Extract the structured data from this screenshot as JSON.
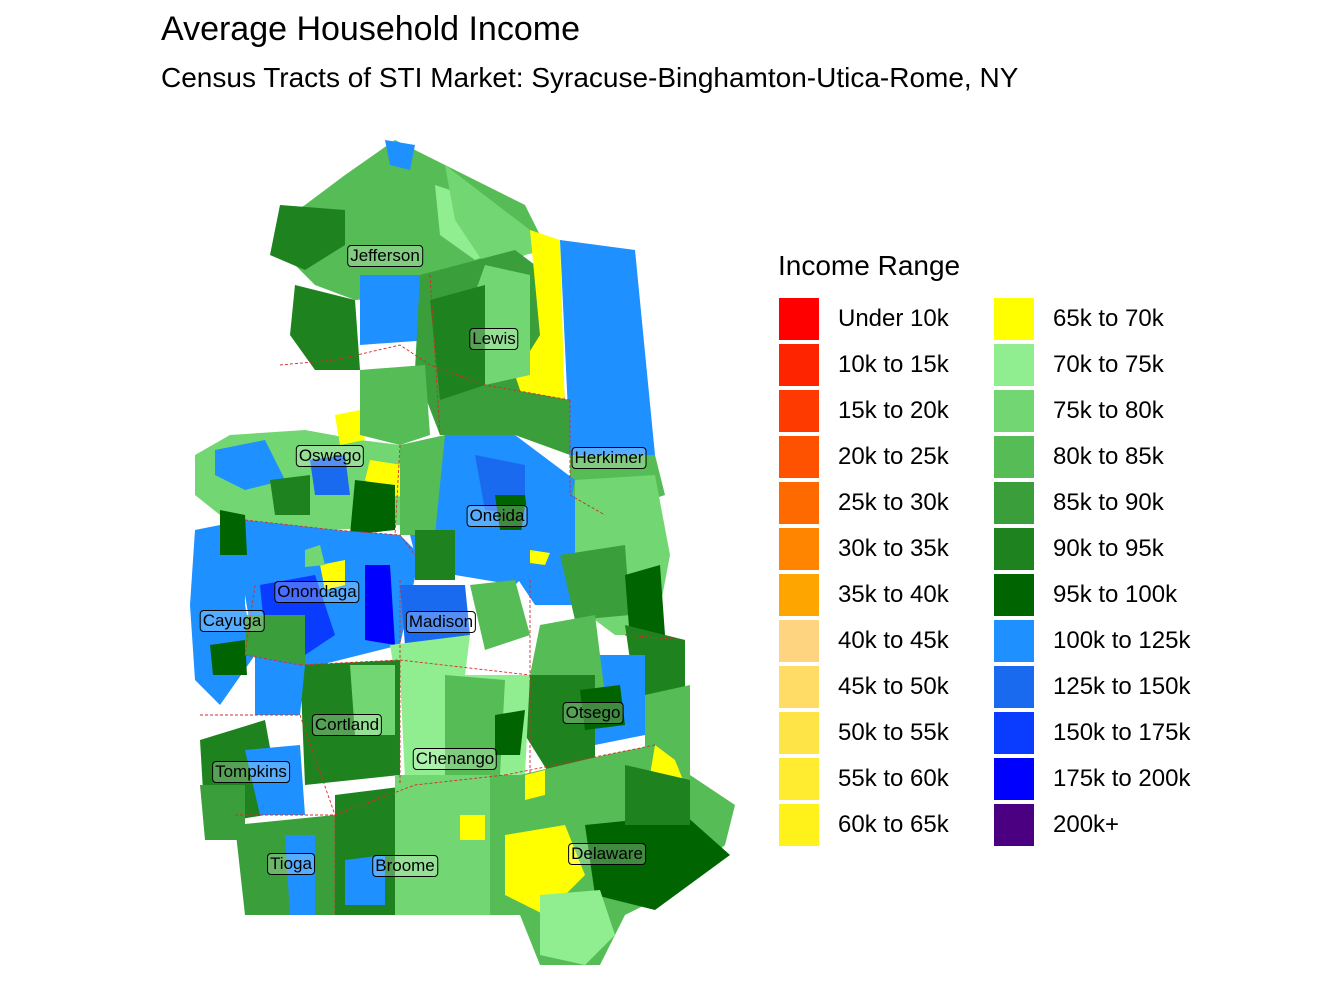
{
  "title": "Average Household Income",
  "subtitle": "Census Tracts of STI Market: Syracuse-Binghamton-Utica-Rome, NY",
  "legend": {
    "title": "Income Range",
    "items": [
      {
        "label": "Under 10k",
        "color": "#ff0000"
      },
      {
        "label": "10k to 15k",
        "color": "#ff2400"
      },
      {
        "label": "15k to 20k",
        "color": "#ff3a00"
      },
      {
        "label": "20k to 25k",
        "color": "#ff5200"
      },
      {
        "label": "25k to 30k",
        "color": "#ff6a00"
      },
      {
        "label": "30k to 35k",
        "color": "#ff8500"
      },
      {
        "label": "35k to 40k",
        "color": "#ffa500"
      },
      {
        "label": "40k to 45k",
        "color": "#ffd480"
      },
      {
        "label": "45k to 50k",
        "color": "#ffdc66"
      },
      {
        "label": "50k to 55k",
        "color": "#ffe448"
      },
      {
        "label": "55k to 60k",
        "color": "#ffec30"
      },
      {
        "label": "60k to 65k",
        "color": "#fff21a"
      },
      {
        "label": "65k to 70k",
        "color": "#ffff00"
      },
      {
        "label": "70k to 75k",
        "color": "#90ee90"
      },
      {
        "label": "75k to 80k",
        "color": "#72d672"
      },
      {
        "label": "80k to 85k",
        "color": "#56bc56"
      },
      {
        "label": "85k to 90k",
        "color": "#3a9e3a"
      },
      {
        "label": "90k to 95k",
        "color": "#1e821e"
      },
      {
        "label": "95k to 100k",
        "color": "#006400"
      },
      {
        "label": "100k to 125k",
        "color": "#1e90ff"
      },
      {
        "label": "125k to 150k",
        "color": "#1a6af0"
      },
      {
        "label": "150k to 175k",
        "color": "#0a3cff"
      },
      {
        "label": "175k to 200k",
        "color": "#0000ff"
      },
      {
        "label": "200k+",
        "color": "#4b0082"
      }
    ]
  },
  "counties": [
    "Jefferson",
    "Lewis",
    "Oswego",
    "Herkimer",
    "Oneida",
    "Onondaga",
    "Cayuga",
    "Madison",
    "Otsego",
    "Cortland",
    "Chenango",
    "Tompkins",
    "Delaware",
    "Tioga",
    "Broome"
  ]
}
